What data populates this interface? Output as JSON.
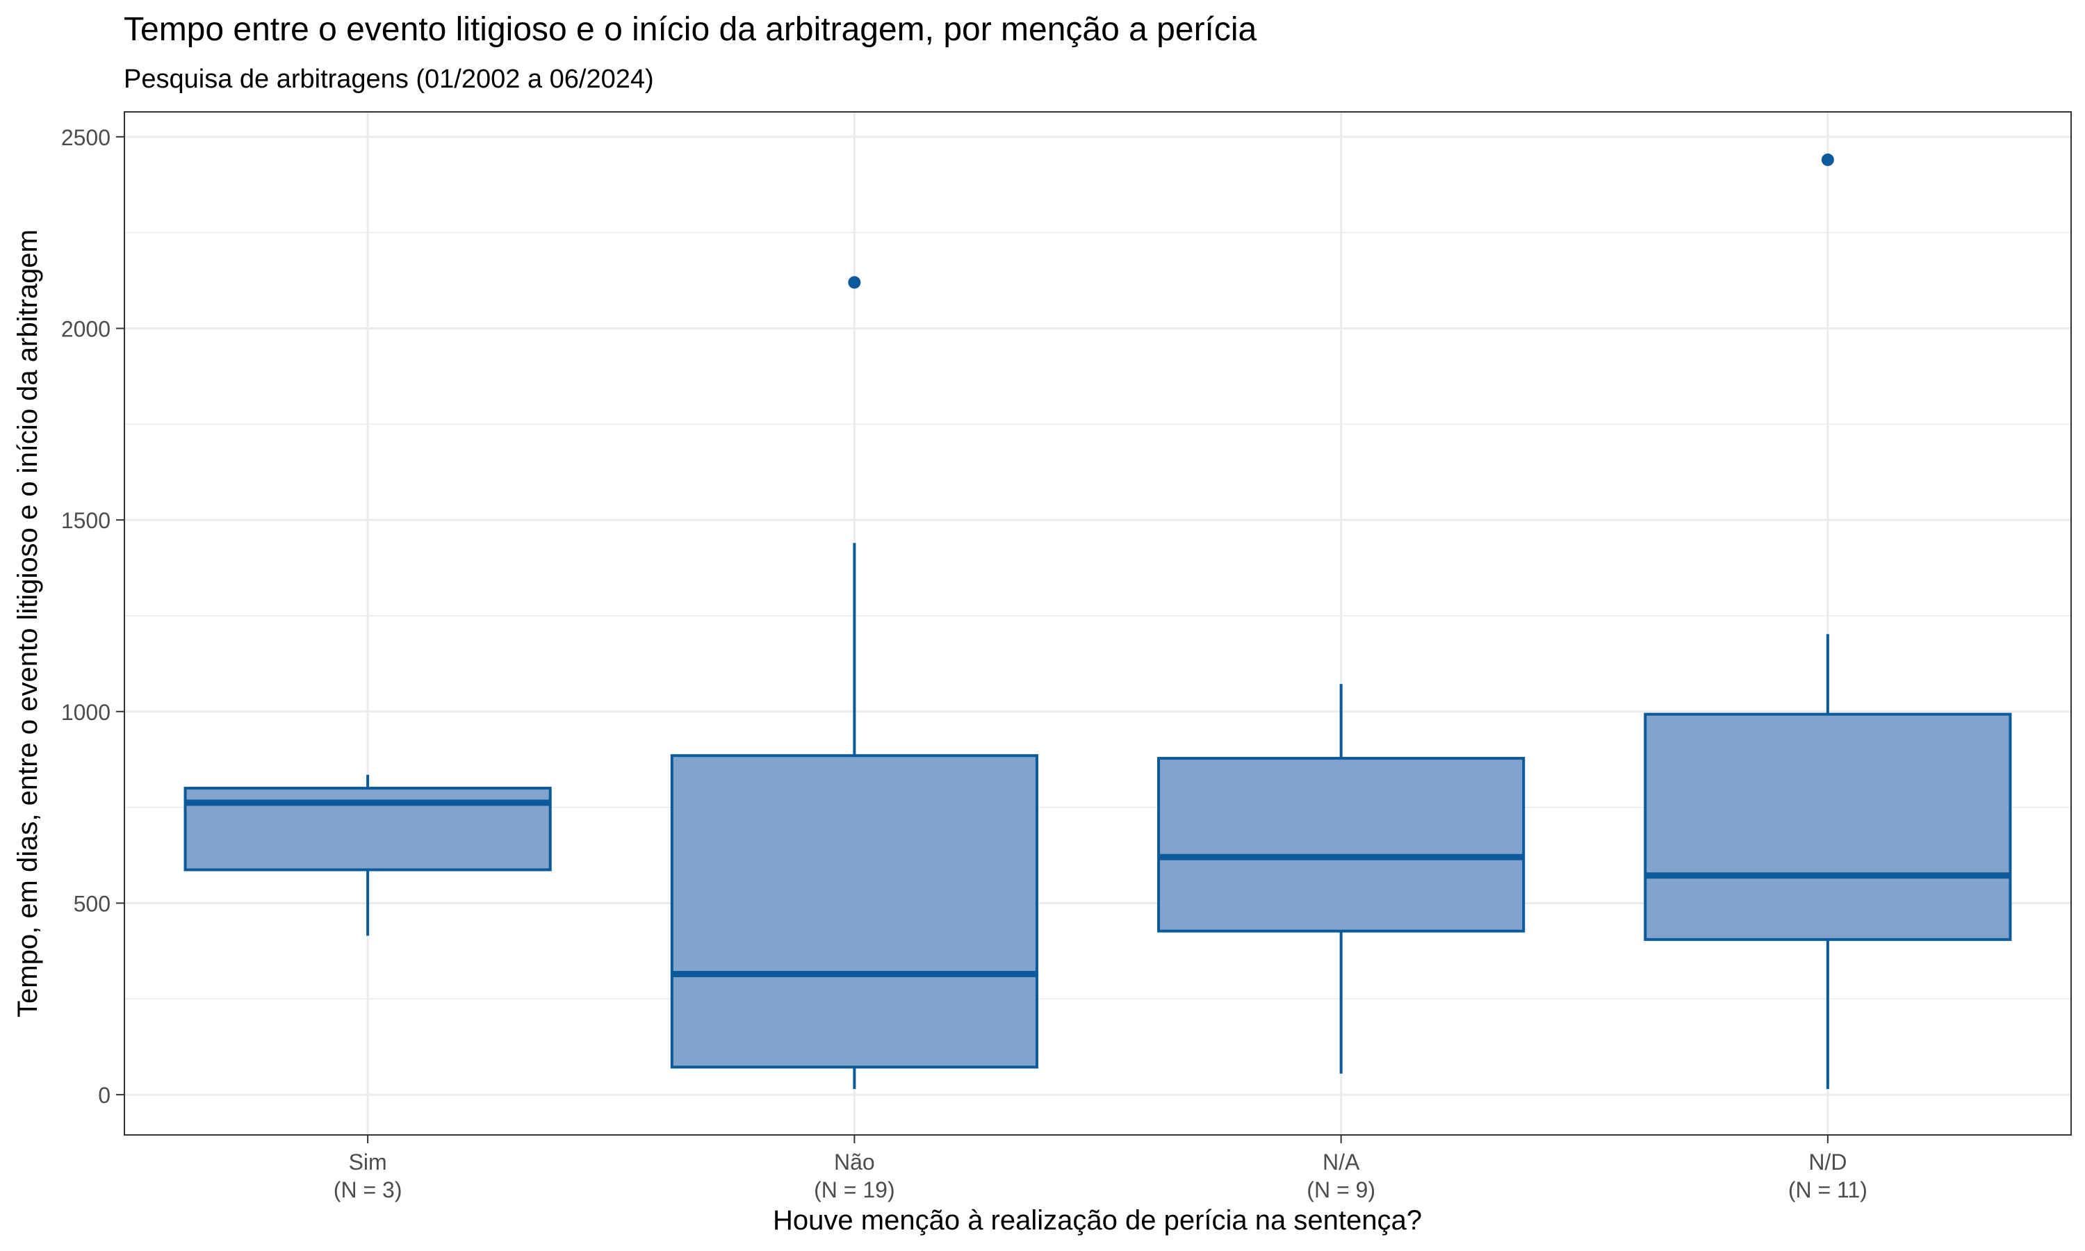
{
  "chart_data": {
    "type": "boxplot",
    "title": "Tempo entre o evento litigioso e o início da arbitragem, por menção a perícia",
    "subtitle": "Pesquisa de arbitragens (01/2002 a 06/2024)",
    "xlabel": "Houve menção à realização de perícia na sentença?",
    "ylabel": "Tempo, em dias, entre o evento litigioso e o início da arbitragem",
    "ylim": [
      -105,
      2565
    ],
    "y_ticks": [
      0,
      500,
      1000,
      1500,
      2000,
      2500
    ],
    "y_tick_labels": [
      "0",
      "500",
      "1000",
      "1500",
      "2000",
      "2500"
    ],
    "grid": true,
    "colors": {
      "fill": "#82a3cb",
      "stroke": "#0a5a9c",
      "grid": "#ebebeb",
      "panel_border": "#333333"
    },
    "categories": [
      {
        "label": "Sim",
        "n_label": "(N = 3)",
        "whisker_low": 415,
        "q1": 587,
        "median": 762,
        "q3": 800,
        "whisker_high": 835,
        "outliers": []
      },
      {
        "label": "Não",
        "n_label": "(N = 19)",
        "whisker_low": 15,
        "q1": 72,
        "median": 315,
        "q3": 885,
        "whisker_high": 1440,
        "outliers": [
          2120
        ]
      },
      {
        "label": "N/A",
        "n_label": "(N = 9)",
        "whisker_low": 55,
        "q1": 427,
        "median": 620,
        "q3": 878,
        "whisker_high": 1072,
        "outliers": []
      },
      {
        "label": "N/D",
        "n_label": "(N = 11)",
        "whisker_low": 15,
        "q1": 405,
        "median": 572,
        "q3": 993,
        "whisker_high": 1202,
        "outliers": [
          2440
        ]
      }
    ]
  }
}
